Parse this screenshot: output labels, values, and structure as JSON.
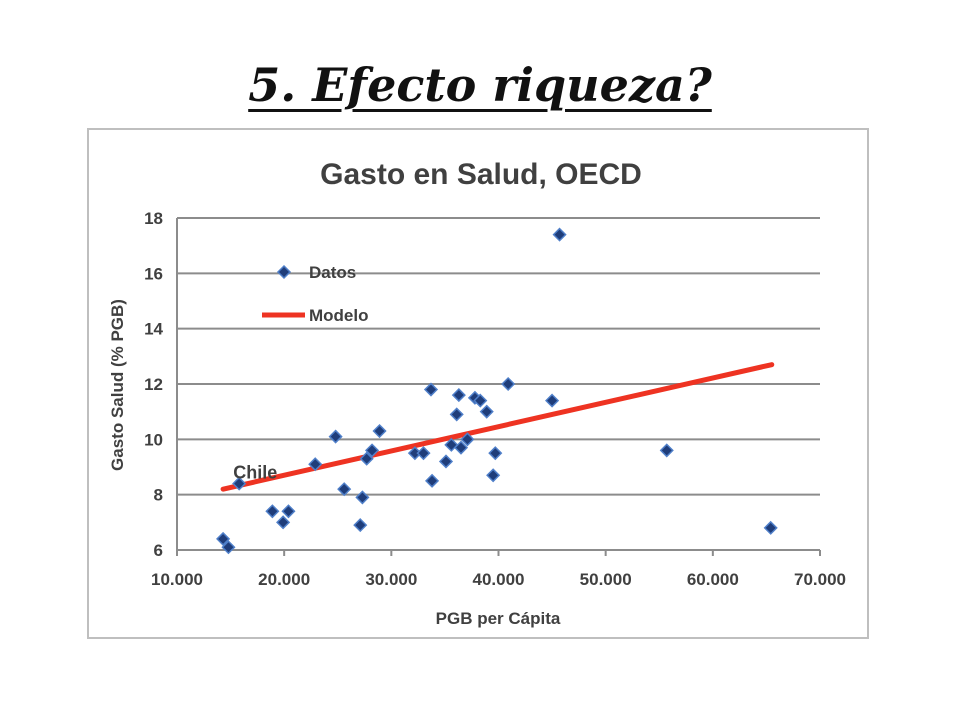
{
  "slide": {
    "title": "5. Efecto riqueza?"
  },
  "chart_data": {
    "type": "scatter",
    "title": "Gasto en Salud, OECD",
    "xlabel": "PGB per Cápita",
    "ylabel": "Gasto Salud (% PGB)",
    "xlim": [
      10000,
      70000
    ],
    "ylim": [
      6,
      18
    ],
    "x_ticks": [
      10000,
      20000,
      30000,
      40000,
      50000,
      60000,
      70000
    ],
    "x_tick_labels": [
      "10.000",
      "20.000",
      "30.000",
      "40.000",
      "50.000",
      "60.000",
      "70.000"
    ],
    "y_ticks": [
      6,
      8,
      10,
      12,
      14,
      16,
      18
    ],
    "y_tick_labels": [
      "6",
      "8",
      "10",
      "12",
      "14",
      "16",
      "18"
    ],
    "grid": "horizontal",
    "legend": {
      "position": "top-left",
      "entries": [
        {
          "label": "Datos",
          "marker": "diamond",
          "color": "#1f3d7a"
        },
        {
          "label": "Modelo",
          "marker": "line",
          "color": "#ee3322"
        }
      ]
    },
    "series": [
      {
        "name": "Datos",
        "kind": "points",
        "color": "#1f3d7a",
        "edge_color": "#4f7fc9",
        "points": [
          [
            14300,
            6.4
          ],
          [
            14800,
            6.1
          ],
          [
            15800,
            8.4
          ],
          [
            18900,
            7.4
          ],
          [
            19900,
            7.0
          ],
          [
            20400,
            7.4
          ],
          [
            22900,
            9.1
          ],
          [
            24800,
            10.1
          ],
          [
            25600,
            8.2
          ],
          [
            27100,
            6.9
          ],
          [
            27300,
            7.9
          ],
          [
            27700,
            9.3
          ],
          [
            28200,
            9.6
          ],
          [
            28900,
            10.3
          ],
          [
            32200,
            9.5
          ],
          [
            33000,
            9.5
          ],
          [
            33700,
            11.8
          ],
          [
            33800,
            8.5
          ],
          [
            35100,
            9.2
          ],
          [
            35600,
            9.8
          ],
          [
            36100,
            10.9
          ],
          [
            36300,
            11.6
          ],
          [
            36500,
            9.7
          ],
          [
            37100,
            10.0
          ],
          [
            37800,
            11.5
          ],
          [
            38300,
            11.4
          ],
          [
            38900,
            11.0
          ],
          [
            39500,
            8.7
          ],
          [
            39700,
            9.5
          ],
          [
            40900,
            12.0
          ],
          [
            45000,
            11.4
          ],
          [
            45700,
            17.4
          ],
          [
            55700,
            9.6
          ],
          [
            65400,
            6.8
          ]
        ]
      },
      {
        "name": "Modelo",
        "kind": "line",
        "color": "#ee3322",
        "points": [
          [
            14300,
            8.2
          ],
          [
            65500,
            12.7
          ]
        ]
      }
    ],
    "annotations": [
      {
        "text": "Chile",
        "x": 16000,
        "y": 8.8
      }
    ]
  }
}
